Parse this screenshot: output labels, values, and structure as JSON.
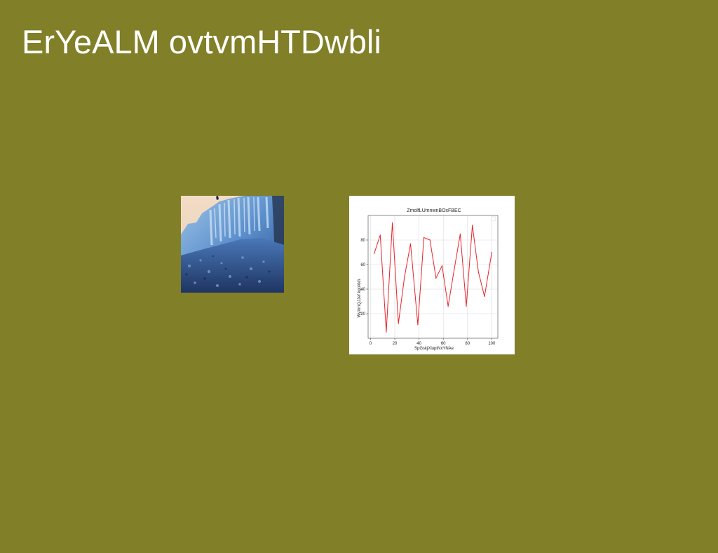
{
  "slide": {
    "title": "ErYeALM ovtvmHTDwbli",
    "background_color": "#817f28"
  },
  "photo": {
    "description_icon": "icy-cliff-photo"
  },
  "chart_data": {
    "type": "line",
    "title": "ZmolfLUmnwnBOxFBEC",
    "xlabel": "SpGskjXluptNxYNAe",
    "ylabel": "WyXmQJJef kgoXkh",
    "xlim": [
      -2,
      105
    ],
    "ylim": [
      0,
      100
    ],
    "x_ticks": [
      0,
      20,
      40,
      60,
      80,
      100
    ],
    "y_ticks": [
      20,
      40,
      60,
      80
    ],
    "grid": true,
    "legend": "top-right",
    "series": [
      {
        "color": "#e8232b",
        "x": [
          3,
          8,
          13,
          18,
          23,
          28,
          33,
          39,
          44,
          49,
          54,
          59,
          64,
          69,
          74,
          79,
          84,
          89,
          94,
          100
        ],
        "y": [
          69,
          84,
          5,
          94,
          12,
          50,
          77,
          11,
          82,
          80,
          49,
          59,
          26,
          56,
          85,
          26,
          92,
          54,
          34,
          70
        ]
      }
    ]
  }
}
